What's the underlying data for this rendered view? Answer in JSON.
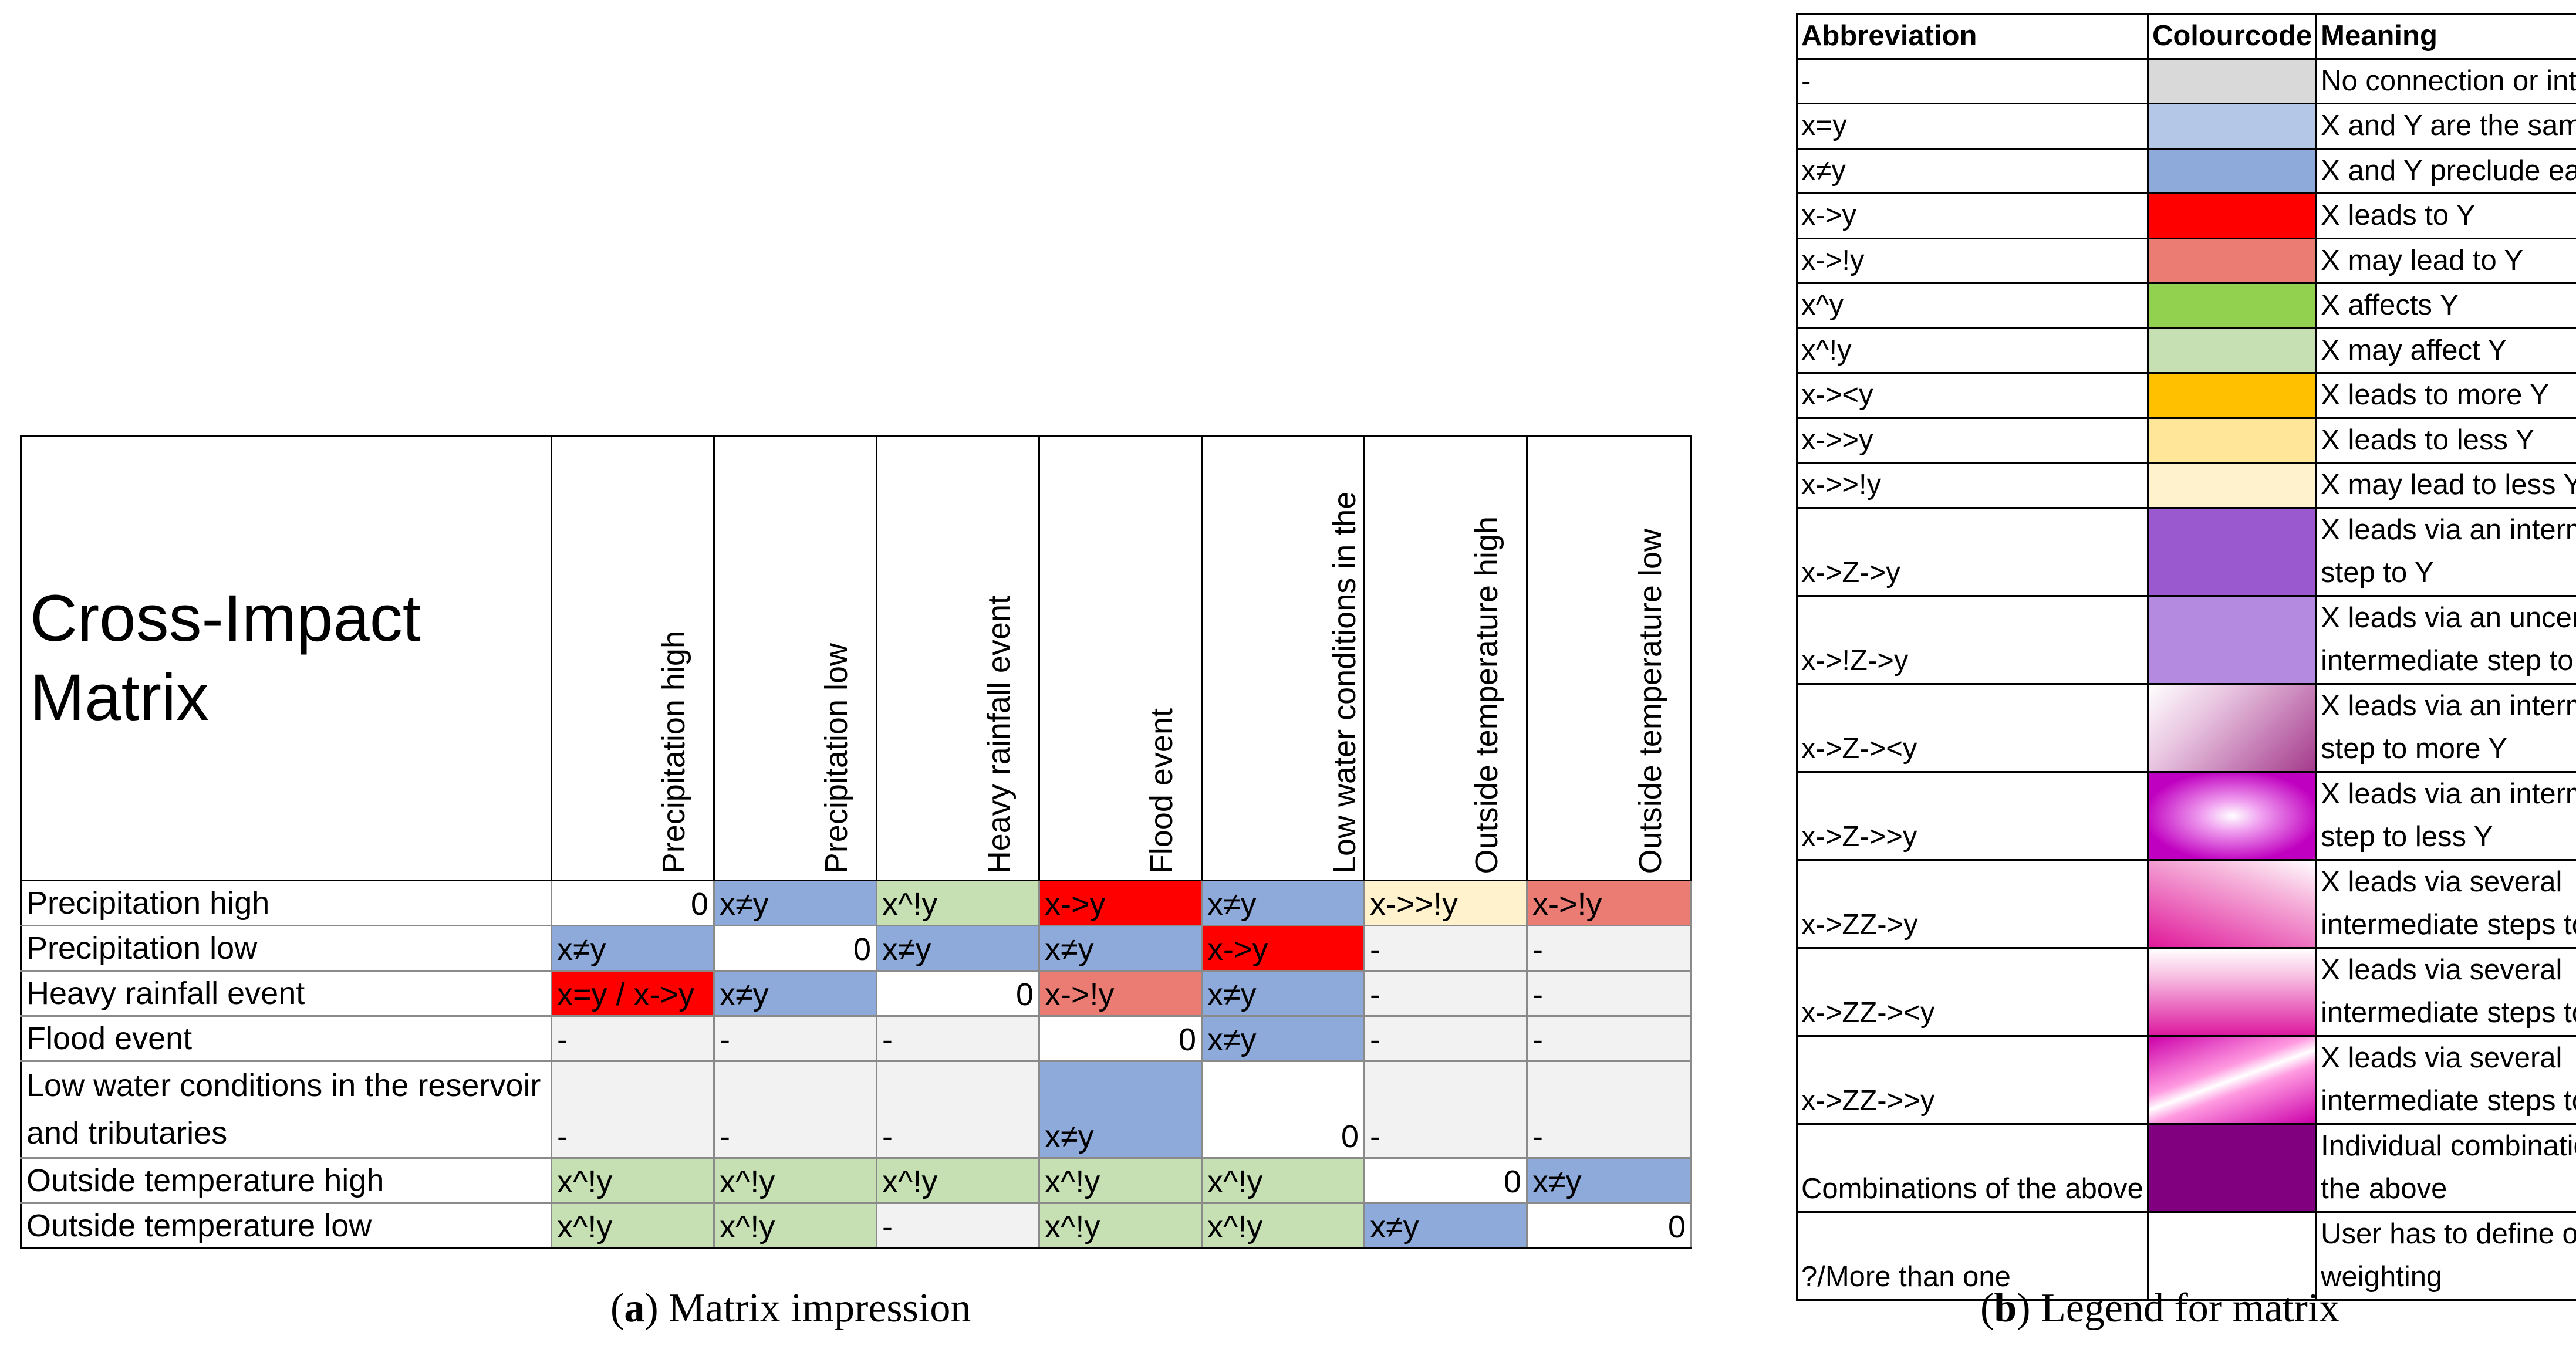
{
  "matrix": {
    "title": "Cross-Impact Matrix",
    "columns": [
      "Precipitation high",
      "Precipitation low",
      "Heavy rainfall event",
      "Flood event",
      "Low water conditions in the reservoir and tributaries",
      "Outside temperature high",
      "Outside temperature low"
    ],
    "rows": [
      {
        "label": "Precipitation high",
        "cells": [
          {
            "text": "0",
            "color": "diag"
          },
          {
            "text": "x≠y",
            "color": "prec"
          },
          {
            "text": "x^!y",
            "color": "mayaff"
          },
          {
            "text": "x->y",
            "color": "leads"
          },
          {
            "text": "x≠y",
            "color": "prec"
          },
          {
            "text": "x->>!y",
            "color": "mayless"
          },
          {
            "text": "x->!y",
            "color": "may"
          }
        ]
      },
      {
        "label": "Precipitation low",
        "cells": [
          {
            "text": "x≠y",
            "color": "prec"
          },
          {
            "text": "0",
            "color": "diag"
          },
          {
            "text": "x≠y",
            "color": "prec"
          },
          {
            "text": "x≠y",
            "color": "prec"
          },
          {
            "text": "x->y",
            "color": "leads"
          },
          {
            "text": "-",
            "color": "grey"
          },
          {
            "text": "-",
            "color": "grey"
          }
        ]
      },
      {
        "label": "Heavy rainfall event",
        "cells": [
          {
            "text": "x=y / x->y",
            "color": "leads"
          },
          {
            "text": "x≠y",
            "color": "prec"
          },
          {
            "text": "0",
            "color": "diag"
          },
          {
            "text": "x->!y",
            "color": "may"
          },
          {
            "text": "x≠y",
            "color": "prec"
          },
          {
            "text": "-",
            "color": "grey"
          },
          {
            "text": "-",
            "color": "grey"
          }
        ]
      },
      {
        "label": "Flood event",
        "cells": [
          {
            "text": "-",
            "color": "grey"
          },
          {
            "text": "-",
            "color": "grey"
          },
          {
            "text": "-",
            "color": "grey"
          },
          {
            "text": "0",
            "color": "diag"
          },
          {
            "text": "x≠y",
            "color": "prec"
          },
          {
            "text": "-",
            "color": "grey"
          },
          {
            "text": "-",
            "color": "grey"
          }
        ]
      },
      {
        "label": "Low water conditions in the reservoir and tributaries",
        "cells": [
          {
            "text": "-",
            "color": "grey"
          },
          {
            "text": "-",
            "color": "grey"
          },
          {
            "text": "-",
            "color": "grey"
          },
          {
            "text": "x≠y",
            "color": "prec"
          },
          {
            "text": "0",
            "color": "diag"
          },
          {
            "text": "-",
            "color": "grey"
          },
          {
            "text": "-",
            "color": "grey"
          }
        ]
      },
      {
        "label": "Outside temperature high",
        "cells": [
          {
            "text": "x^!y",
            "color": "mayaff"
          },
          {
            "text": "x^!y",
            "color": "mayaff"
          },
          {
            "text": "x^!y",
            "color": "mayaff"
          },
          {
            "text": "x^!y",
            "color": "mayaff"
          },
          {
            "text": "x^!y",
            "color": "mayaff"
          },
          {
            "text": "0",
            "color": "diag"
          },
          {
            "text": "x≠y",
            "color": "prec"
          }
        ]
      },
      {
        "label": "Outside temperature low",
        "cells": [
          {
            "text": "x^!y",
            "color": "mayaff"
          },
          {
            "text": "x^!y",
            "color": "mayaff"
          },
          {
            "text": "-",
            "color": "grey"
          },
          {
            "text": "x^!y",
            "color": "mayaff"
          },
          {
            "text": "x^!y",
            "color": "mayaff"
          },
          {
            "text": "x≠y",
            "color": "prec"
          },
          {
            "text": "0",
            "color": "diag"
          }
        ]
      }
    ],
    "caption_letter": "a",
    "caption_text": " Matrix impression"
  },
  "legend": {
    "headers": [
      "Abbreviation",
      "Colourcode",
      "Meaning"
    ],
    "rows": [
      {
        "abbr": "-",
        "meaning": "No connection or interaction",
        "swatch": "#d9d9d9",
        "kind": "solid"
      },
      {
        "abbr": "x=y",
        "meaning": "X and Y are the same",
        "swatch": "#b4c7e7",
        "kind": "solid"
      },
      {
        "abbr": "x≠y",
        "meaning": "X and Y preclude each other",
        "swatch": "#8eaadb",
        "kind": "solid"
      },
      {
        "abbr": "x->y",
        "meaning": "X leads to Y",
        "swatch": "#ff0000",
        "kind": "solid"
      },
      {
        "abbr": "x->!y",
        "meaning": "X may lead to Y",
        "swatch": "#ea7c74",
        "kind": "solid"
      },
      {
        "abbr": "x^y",
        "meaning": "X affects Y",
        "swatch": "#92d050",
        "kind": "solid"
      },
      {
        "abbr": "x^!y",
        "meaning": "X may affect Y",
        "swatch": "#c6e0b4",
        "kind": "solid"
      },
      {
        "abbr": "x-><y",
        "meaning": "X leads to more Y",
        "swatch": "#ffc000",
        "kind": "solid"
      },
      {
        "abbr": "x->>y",
        "meaning": "X leads to less Y",
        "swatch": "#ffe699",
        "kind": "solid"
      },
      {
        "abbr": "x->>!y",
        "meaning": "X may lead to less Y",
        "swatch": "#fff2cc",
        "kind": "solid"
      },
      {
        "abbr": "x->Z->y",
        "meaning": "X leads via an intermediate step to Y",
        "swatch": "#9b59d0",
        "kind": "solid"
      },
      {
        "abbr": "x->!Z->y",
        "meaning": "X leads via an uncertain intermediate step to Y",
        "swatch": "#b48ae0",
        "kind": "solid"
      },
      {
        "abbr": "x->Z-><y",
        "meaning": "X leads via an intermediate step to more Y",
        "swatch": "#a43a8c",
        "kind": "grad-diag"
      },
      {
        "abbr": "x->Z->>y",
        "meaning": "X leads via an intermediate step to less Y",
        "swatch": "#c000c0",
        "kind": "grad-star"
      },
      {
        "abbr": "x->ZZ->y",
        "meaning": "X leads via several intermediate steps to Y",
        "swatch": "#e0189a",
        "kind": "grad-corner"
      },
      {
        "abbr": "x->ZZ-><y",
        "meaning": "X leads via several intermediate steps to more",
        "swatch": "#dd1aa0",
        "kind": "grad-down"
      },
      {
        "abbr": "x->ZZ->>y",
        "meaning": "X leads via several intermediate steps to less Y",
        "swatch": "#cc00aa",
        "kind": "grad-band"
      },
      {
        "abbr": "Combinations of the above",
        "meaning": "Individual combination of the above",
        "swatch": "#800080",
        "kind": "solid"
      },
      {
        "abbr": "?/More than one",
        "meaning": "User has to define own weighting",
        "swatch": "#ffffff",
        "kind": "solid"
      }
    ],
    "caption_letter": "b",
    "caption_text": " Legend for matrix"
  }
}
